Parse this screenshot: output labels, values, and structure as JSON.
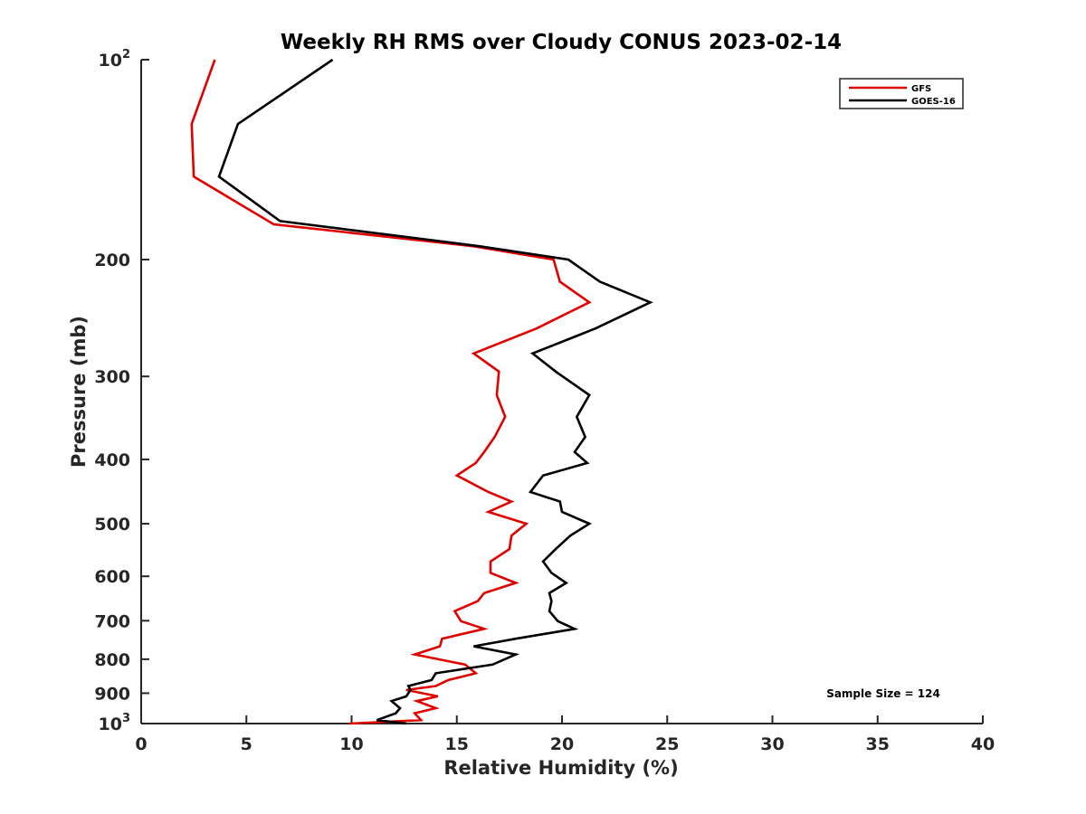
{
  "chart_data": {
    "type": "line",
    "title": "Weekly RH RMS over Cloudy CONUS 2023-02-14",
    "xlabel": "Relative Humidity (%)",
    "ylabel": "Pressure (mb)",
    "xlim": [
      0,
      40
    ],
    "ylim": [
      100,
      1000
    ],
    "y_scale": "log",
    "y_reversed": true,
    "grid": false,
    "legend_position": "top-right",
    "x_ticks": [
      0,
      5,
      10,
      15,
      20,
      25,
      30,
      35,
      40
    ],
    "x_tick_labels": [
      "0",
      "5",
      "10",
      "15",
      "20",
      "25",
      "30",
      "35",
      "40"
    ],
    "y_ticks": [
      {
        "value": 100,
        "base": "10",
        "exponent": "2",
        "label": ""
      },
      {
        "value": 200,
        "base": "",
        "exponent": "",
        "label": "200"
      },
      {
        "value": 300,
        "base": "",
        "exponent": "",
        "label": "300"
      },
      {
        "value": 400,
        "base": "",
        "exponent": "",
        "label": "400"
      },
      {
        "value": 500,
        "base": "",
        "exponent": "",
        "label": "500"
      },
      {
        "value": 600,
        "base": "",
        "exponent": "",
        "label": "600"
      },
      {
        "value": 700,
        "base": "",
        "exponent": "",
        "label": "700"
      },
      {
        "value": 800,
        "base": "",
        "exponent": "",
        "label": "800"
      },
      {
        "value": 900,
        "base": "",
        "exponent": "",
        "label": "900"
      },
      {
        "value": 1000,
        "base": "10",
        "exponent": "3",
        "label": ""
      }
    ],
    "annotation": "Sample Size = 124",
    "series": [
      {
        "name": "GFS",
        "color": "#e00000",
        "points": [
          [
            3.5,
            100
          ],
          [
            2.4,
            125
          ],
          [
            2.5,
            150
          ],
          [
            6.3,
            177
          ],
          [
            15.8,
            191
          ],
          [
            19.6,
            200
          ],
          [
            19.9,
            216
          ],
          [
            21.3,
            232
          ],
          [
            18.8,
            254
          ],
          [
            15.8,
            277
          ],
          [
            17.0,
            295
          ],
          [
            16.9,
            320
          ],
          [
            17.3,
            345
          ],
          [
            16.8,
            370
          ],
          [
            16.3,
            390
          ],
          [
            15.9,
            405
          ],
          [
            15.0,
            423
          ],
          [
            16.5,
            448
          ],
          [
            17.6,
            463
          ],
          [
            16.5,
            480
          ],
          [
            18.3,
            500
          ],
          [
            17.6,
            521
          ],
          [
            17.5,
            546
          ],
          [
            16.6,
            570
          ],
          [
            16.6,
            593
          ],
          [
            17.8,
            614
          ],
          [
            16.3,
            636
          ],
          [
            16.0,
            654
          ],
          [
            14.9,
            677
          ],
          [
            15.2,
            701
          ],
          [
            16.3,
            720
          ],
          [
            14.3,
            745
          ],
          [
            14.2,
            765
          ],
          [
            13.0,
            787
          ],
          [
            15.4,
            815
          ],
          [
            15.9,
            840
          ],
          [
            14.6,
            860
          ],
          [
            14.0,
            878
          ],
          [
            12.6,
            890
          ],
          [
            14.1,
            910
          ],
          [
            13.1,
            925
          ],
          [
            14.0,
            948
          ],
          [
            13.0,
            965
          ],
          [
            13.3,
            988
          ],
          [
            9.9,
            1000
          ]
        ]
      },
      {
        "name": "GOES-16",
        "color": "#000000",
        "points": [
          [
            9.1,
            100
          ],
          [
            4.6,
            125
          ],
          [
            3.7,
            150
          ],
          [
            6.6,
            175
          ],
          [
            16.1,
            191
          ],
          [
            20.3,
            200
          ],
          [
            21.8,
            216
          ],
          [
            24.2,
            232
          ],
          [
            21.6,
            254
          ],
          [
            18.6,
            277
          ],
          [
            19.7,
            295
          ],
          [
            21.3,
            320
          ],
          [
            20.7,
            345
          ],
          [
            21.1,
            370
          ],
          [
            20.6,
            390
          ],
          [
            21.2,
            405
          ],
          [
            19.1,
            423
          ],
          [
            18.5,
            448
          ],
          [
            19.9,
            463
          ],
          [
            20.0,
            480
          ],
          [
            21.3,
            500
          ],
          [
            20.4,
            521
          ],
          [
            19.7,
            546
          ],
          [
            19.1,
            570
          ],
          [
            19.5,
            593
          ],
          [
            20.2,
            614
          ],
          [
            19.4,
            636
          ],
          [
            19.5,
            654
          ],
          [
            19.4,
            677
          ],
          [
            19.8,
            701
          ],
          [
            20.6,
            720
          ],
          [
            17.8,
            745
          ],
          [
            15.8,
            765
          ],
          [
            17.8,
            787
          ],
          [
            16.7,
            815
          ],
          [
            14.0,
            840
          ],
          [
            13.8,
            860
          ],
          [
            12.7,
            878
          ],
          [
            12.8,
            890
          ],
          [
            12.6,
            910
          ],
          [
            11.9,
            925
          ],
          [
            12.3,
            948
          ],
          [
            12.1,
            965
          ],
          [
            11.2,
            988
          ],
          [
            12.6,
            1000
          ]
        ]
      }
    ]
  }
}
